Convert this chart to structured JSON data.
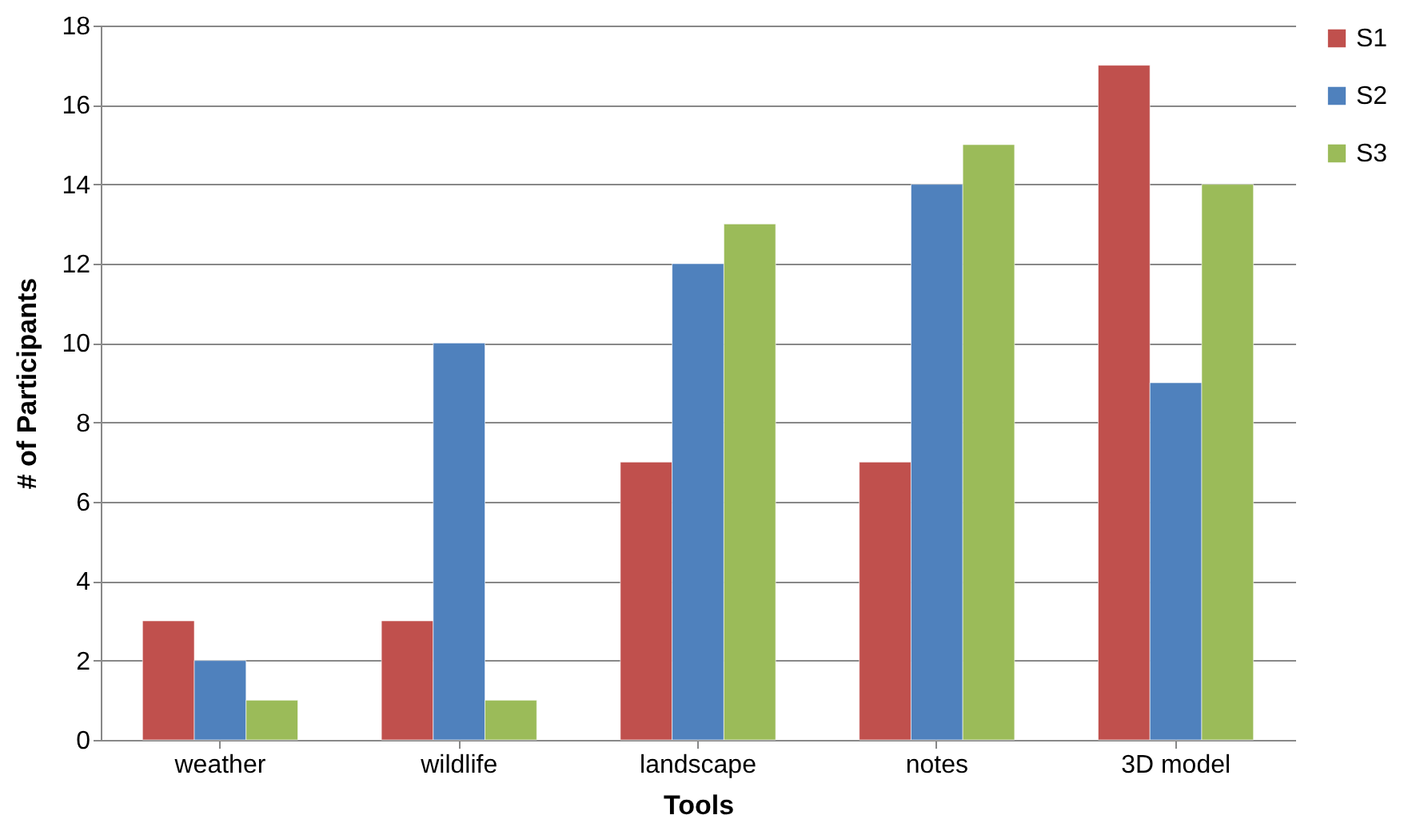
{
  "chart_data": {
    "type": "bar",
    "xlabel": "Tools",
    "ylabel": "# of Participants",
    "categories": [
      "weather",
      "wildlife",
      "landscape",
      "notes",
      "3D model"
    ],
    "series": [
      {
        "name": "S1",
        "color": "#c0504d",
        "values": [
          3,
          3,
          7,
          7,
          17
        ]
      },
      {
        "name": "S2",
        "color": "#4f81bd",
        "values": [
          2,
          10,
          12,
          14,
          9
        ]
      },
      {
        "name": "S3",
        "color": "#9bbb59",
        "values": [
          1,
          1,
          13,
          15,
          14
        ]
      }
    ],
    "ylim": [
      0,
      18
    ],
    "yticks": [
      0,
      2,
      4,
      6,
      8,
      10,
      12,
      14,
      16,
      18
    ],
    "grid": "y",
    "legend": "right"
  }
}
